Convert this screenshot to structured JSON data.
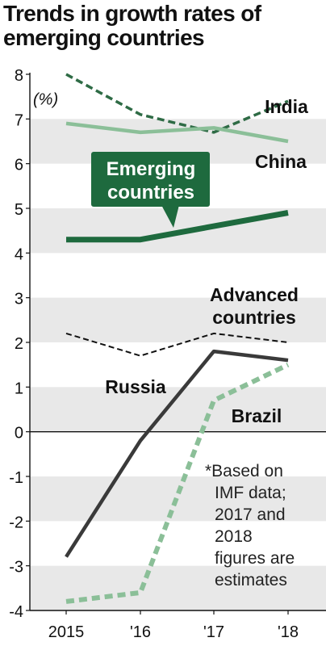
{
  "title": "Trends in growth rates of emerging countries",
  "colors": {
    "band": "#e8e8e8",
    "india": "#2e6b45",
    "china": "#8bbf98",
    "emerging": "#1e6a3e",
    "advanced": "#111111",
    "russia": "#3a3a3a",
    "brazil": "#8bbf98"
  },
  "chart_data": {
    "type": "line",
    "x": [
      "2015",
      "'16",
      "'17",
      "'18"
    ],
    "ylim": [
      -4,
      8
    ],
    "yticks": [
      "-4",
      "-3",
      "-2",
      "-1",
      "0",
      "1",
      "2",
      "3",
      "4",
      "5",
      "6",
      "7",
      "8"
    ],
    "yunit": "(%)",
    "series": [
      {
        "name": "India",
        "values": [
          8.0,
          7.1,
          6.7,
          7.4
        ],
        "style": "dashed"
      },
      {
        "name": "China",
        "values": [
          6.9,
          6.7,
          6.8,
          6.5
        ],
        "style": "solid"
      },
      {
        "name": "Emerging countries",
        "values": [
          4.3,
          4.3,
          4.6,
          4.9
        ],
        "style": "solid"
      },
      {
        "name": "Advanced countries",
        "values": [
          2.2,
          1.7,
          2.2,
          2.0
        ],
        "style": "dashed"
      },
      {
        "name": "Russia",
        "values": [
          -2.8,
          -0.2,
          1.8,
          1.6
        ],
        "style": "solid"
      },
      {
        "name": "Brazil",
        "values": [
          -3.8,
          -3.6,
          0.7,
          1.5
        ],
        "style": "dashed"
      }
    ],
    "labels": {
      "india": "India",
      "china": "China",
      "emerging_line1": "Emerging",
      "emerging_line2": "countries",
      "advanced_line1": "Advanced",
      "advanced_line2": "countries",
      "russia": "Russia",
      "brazil": "Brazil"
    },
    "note": [
      "*Based on",
      "IMF data;",
      "2017 and",
      "2018",
      "figures are",
      "estimates"
    ],
    "grid": false,
    "alternating_bands": true
  }
}
